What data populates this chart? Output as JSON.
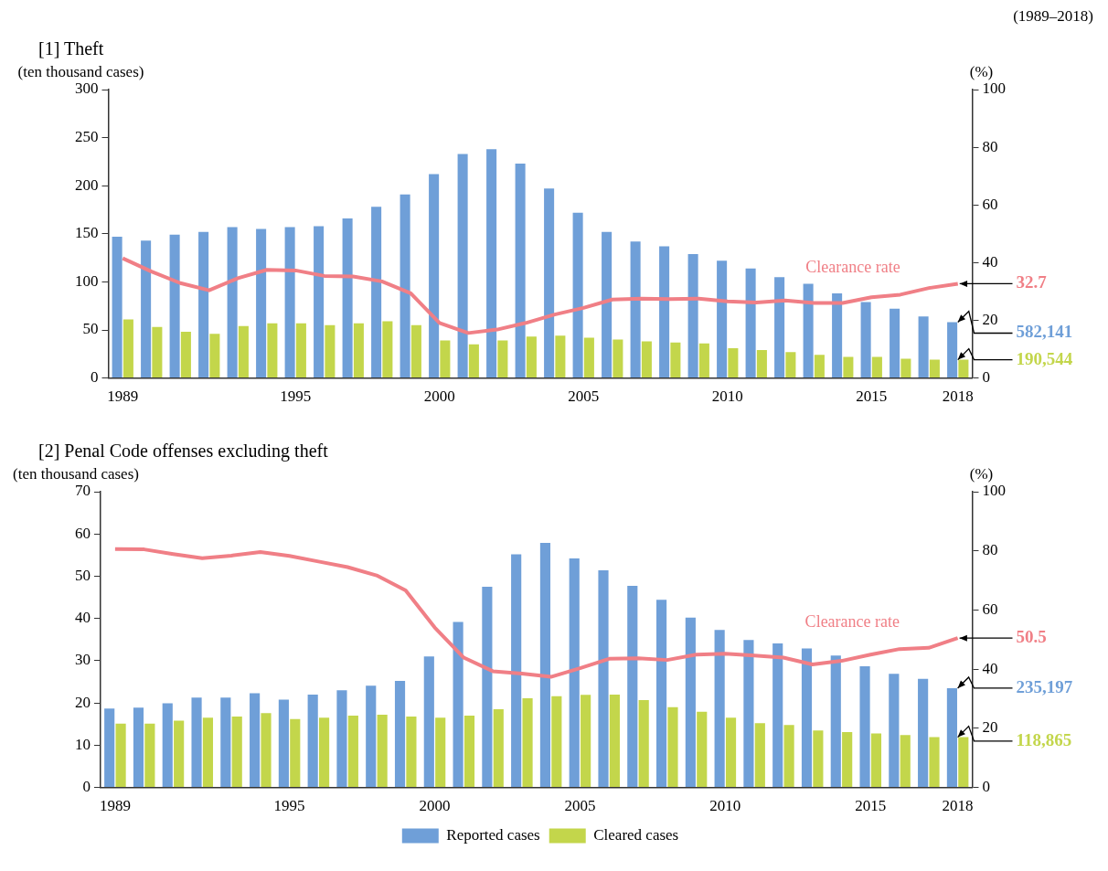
{
  "chart_data": [
    {
      "type": "bar",
      "title": "[1] Theft",
      "ylabel": "(ten thousand cases)",
      "y2label": "(%)",
      "annotations": [
        "(1989–2018)",
        {
          "text": "582,141",
          "x": "2018",
          "y": 58
        },
        {
          "text": "190,544",
          "x": "2018",
          "y": 19
        }
      ],
      "categories": [
        "1989",
        null,
        null,
        null,
        null,
        null,
        "1995",
        null,
        null,
        null,
        null,
        "2000",
        null,
        null,
        null,
        null,
        "2005",
        null,
        null,
        null,
        null,
        "2010",
        null,
        null,
        null,
        null,
        "2015",
        null,
        null,
        "2018"
      ],
      "series": [
        {
          "color": "#6f9fd8",
          "values": [
            147,
            143,
            149,
            152,
            157,
            155,
            157,
            158,
            166,
            178,
            191,
            212,
            233,
            238,
            223,
            197,
            172,
            152,
            142,
            137,
            129,
            122,
            114,
            105,
            98,
            88,
            79,
            72,
            64,
            58
          ]
        },
        {
          "color": "#c3d64b",
          "values": [
            61,
            53,
            48,
            46,
            54,
            57,
            57,
            55,
            57,
            59,
            55,
            39,
            35,
            39,
            43,
            44,
            42,
            40,
            38,
            37,
            36,
            31,
            29,
            27,
            24,
            22,
            22,
            20,
            19,
            19
          ]
        },
        {
          "name": "Clearance rate",
          "type": "line",
          "axis": "y2",
          "color": "#f07f86",
          "values": [
            41.5,
            36.9,
            32.9,
            30.4,
            34.6,
            37.5,
            37.3,
            35.4,
            35.2,
            33.5,
            29.4,
            19.1,
            15.6,
            16.8,
            19.1,
            22.0,
            24.3,
            27.2,
            27.5,
            27.4,
            27.5,
            26.6,
            26.2,
            26.9,
            26.0,
            26.0,
            28.0,
            28.9,
            31.2,
            32.7
          ],
          "value_labels": [
            null,
            null,
            null,
            null,
            null,
            null,
            null,
            null,
            null,
            null,
            null,
            null,
            null,
            null,
            null,
            null,
            null,
            null,
            null,
            null,
            null,
            null,
            null,
            null,
            null,
            null,
            null,
            null,
            null,
            "32.7"
          ]
        }
      ],
      "ylim": [
        0,
        300
      ],
      "yticks": [
        0,
        50,
        100,
        150,
        200,
        250,
        300
      ],
      "y2lim": [
        0,
        100
      ],
      "y2ticks": [
        0,
        20,
        40,
        60,
        80,
        100
      ]
    },
    {
      "type": "bar",
      "title": "[2] Penal Code offenses excluding theft",
      "ylabel": "(ten thousand cases)",
      "y2label": "(%)",
      "legend": "bottom",
      "annotations": [
        {
          "text": "235,197",
          "x": "2018",
          "y": 23.5
        },
        {
          "text": "118,865",
          "x": "2018",
          "y": 11.9
        }
      ],
      "categories": [
        "1989",
        null,
        null,
        null,
        null,
        null,
        "1995",
        null,
        null,
        null,
        null,
        "2000",
        null,
        null,
        null,
        null,
        "2005",
        null,
        null,
        null,
        null,
        "2010",
        null,
        null,
        null,
        null,
        "2015",
        null,
        null,
        "2018"
      ],
      "series": [
        {
          "name": "Reported cases",
          "color": "#6f9fd8",
          "values": [
            18.7,
            18.9,
            19.9,
            21.3,
            21.3,
            22.3,
            20.8,
            22.0,
            23.0,
            24.1,
            25.2,
            31.0,
            39.2,
            47.5,
            55.2,
            57.9,
            54.2,
            51.4,
            47.7,
            44.4,
            40.2,
            37.3,
            34.9,
            34.1,
            32.9,
            31.2,
            28.7,
            26.9,
            25.7,
            23.5
          ]
        },
        {
          "name": "Cleared cases",
          "color": "#c3d64b",
          "values": [
            15.1,
            15.1,
            15.8,
            16.5,
            16.8,
            17.6,
            16.2,
            16.5,
            17.0,
            17.2,
            16.8,
            16.5,
            17.0,
            18.5,
            21.1,
            21.6,
            21.9,
            22.0,
            20.7,
            19.0,
            17.9,
            16.5,
            15.2,
            14.8,
            13.5,
            13.1,
            12.8,
            12.4,
            11.9,
            11.9
          ]
        },
        {
          "name": "Clearance rate",
          "type": "line",
          "axis": "y2",
          "color": "#f07f86",
          "values": [
            80.6,
            80.5,
            78.9,
            77.5,
            78.4,
            79.6,
            78.3,
            76.4,
            74.5,
            71.7,
            66.6,
            54.1,
            43.9,
            39.3,
            38.5,
            37.4,
            40.3,
            43.5,
            43.7,
            43.1,
            44.9,
            45.2,
            44.6,
            43.9,
            41.6,
            42.8,
            44.9,
            46.8,
            47.2,
            50.5
          ],
          "value_labels": [
            null,
            null,
            null,
            null,
            null,
            null,
            null,
            null,
            null,
            null,
            null,
            null,
            null,
            null,
            null,
            null,
            null,
            null,
            null,
            null,
            null,
            null,
            null,
            null,
            null,
            null,
            null,
            null,
            null,
            "50.5"
          ]
        }
      ],
      "ylim": [
        0,
        70
      ],
      "yticks": [
        0,
        10,
        20,
        30,
        40,
        50,
        60,
        70
      ],
      "y2lim": [
        0,
        100
      ],
      "y2ticks": [
        0,
        20,
        40,
        60,
        80,
        100
      ]
    }
  ]
}
